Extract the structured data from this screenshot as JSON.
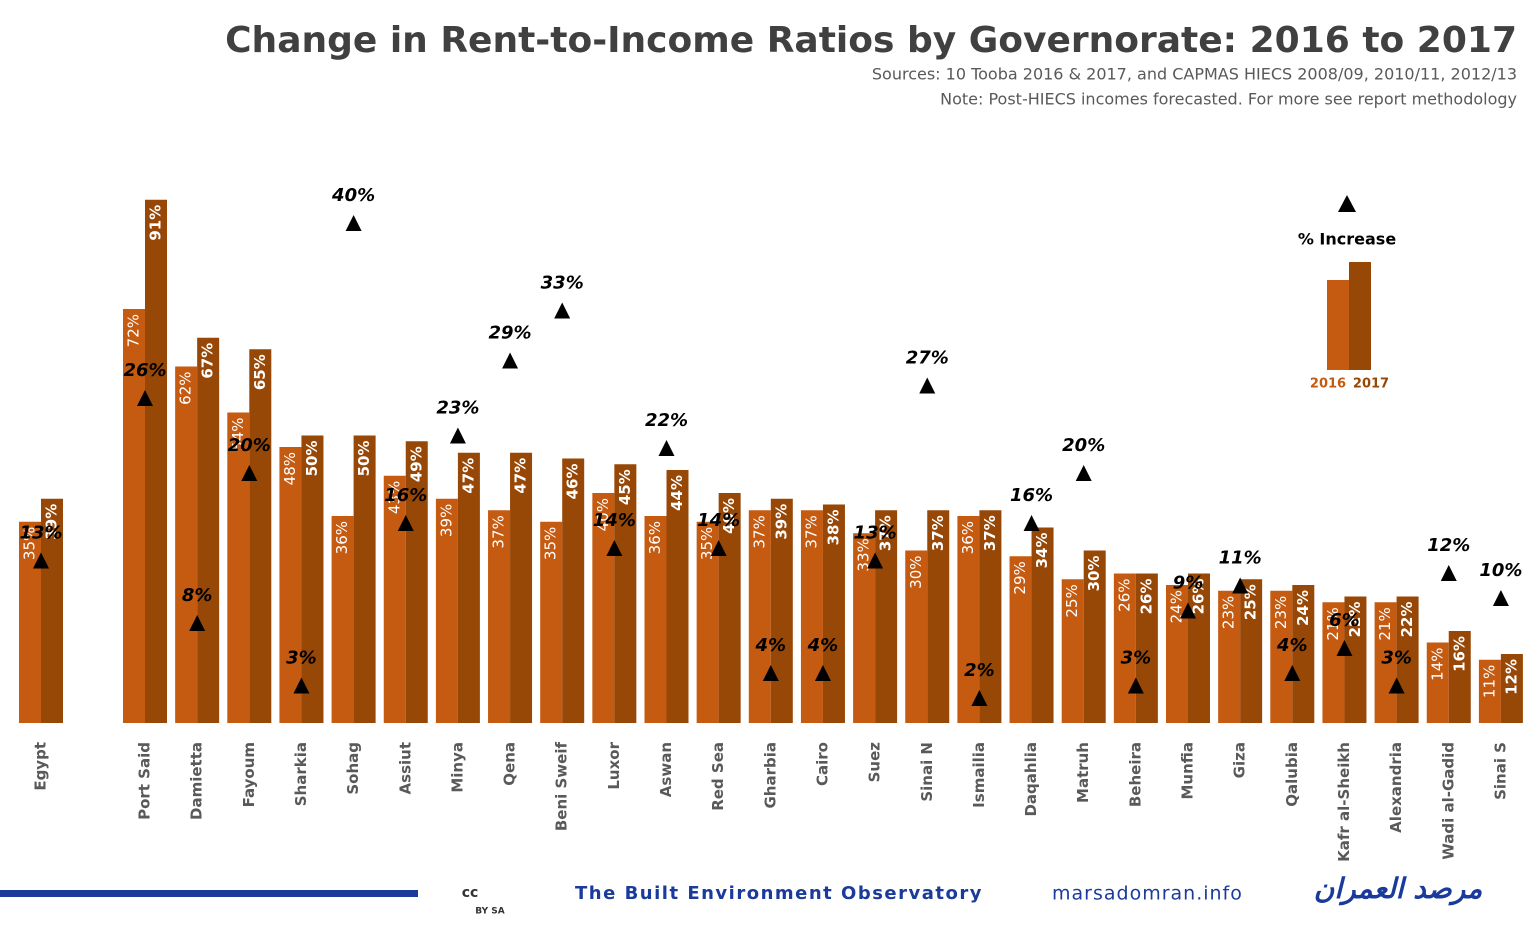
{
  "chart_data": {
    "type": "bar",
    "title": "Change in Rent-to-Income Ratios by Governorate: 2016 to 2017",
    "subtitle": "Sources: 10 Tooba 2016 & 2017, and CAPMAS HIECS 2008/09, 2010/11, 2012/13",
    "note": "Note: Post-HIECS incomes forecasted. For more see report methodology",
    "categories": [
      "Egypt",
      "Port Said",
      "Damietta",
      "Fayoum",
      "Sharkia",
      "Sohag",
      "Assiut",
      "Minya",
      "Qena",
      "Beni Sweif",
      "Luxor",
      "Aswan",
      "Red Sea",
      "Gharbia",
      "Cairo",
      "Suez",
      "Sinai N",
      "Ismailia",
      "Daqahlia",
      "Matruh",
      "Beheira",
      "Munfia",
      "Giza",
      "Qalubia",
      "Kafr al-Sheikh",
      "Alexandria",
      "Wadi al-Gadid",
      "Sinai S"
    ],
    "series": [
      {
        "name": "2016",
        "color": "#c55a11",
        "values": [
          35,
          72,
          62,
          54,
          48,
          36,
          43,
          39,
          37,
          35,
          40,
          36,
          35,
          37,
          37,
          33,
          30,
          36,
          29,
          25,
          26,
          24,
          23,
          23,
          21,
          21,
          14,
          11
        ],
        "value_labels": [
          "35%",
          "72%",
          "62%",
          "54%",
          "48%",
          "36%",
          "43%",
          "39%",
          "37%",
          "35%",
          "40%",
          "36%",
          "35%",
          "37%",
          "37%",
          "33%",
          "30%",
          "36%",
          "29%",
          "25%",
          "26%",
          "24%",
          "23%",
          "23%",
          "21%",
          "21%",
          "14%",
          "11%"
        ]
      },
      {
        "name": "2017",
        "color": "#974706",
        "values": [
          39,
          91,
          67,
          65,
          50,
          50,
          49,
          47,
          47,
          46,
          45,
          44,
          40,
          39,
          38,
          37,
          37,
          37,
          34,
          30,
          26,
          26,
          25,
          24,
          22,
          22,
          16,
          12
        ],
        "value_labels": [
          "39%",
          "91%",
          "67%",
          "65%",
          "50%",
          "50%",
          "49%",
          "47%",
          "47%",
          "46%",
          "45%",
          "44%",
          "40%",
          "39%",
          "38%",
          "37%",
          "37%",
          "37%",
          "34%",
          "30%",
          "26%",
          "26%",
          "25%",
          "24%",
          "22%",
          "22%",
          "16%",
          "12%"
        ]
      },
      {
        "name": "% Increase",
        "color": "#000000",
        "axis": "y2",
        "marker": "triangle",
        "values": [
          13,
          26,
          8,
          20,
          3,
          40,
          16,
          23,
          29,
          33,
          14,
          22,
          14,
          4,
          4,
          13,
          27,
          2,
          16,
          20,
          3,
          9,
          11,
          4,
          6,
          3,
          12,
          10
        ],
        "value_labels": [
          "13%",
          "26%",
          "8%",
          "20%",
          "3%",
          "40%",
          "16%",
          "23%",
          "29%",
          "33%",
          "14%",
          "22%",
          "14%",
          "4%",
          "4%",
          "13%",
          "27%",
          "2%",
          "16%",
          "20%",
          "3%",
          "9%",
          "11%",
          "4%",
          "6%",
          "3%",
          "12%",
          "10%"
        ]
      }
    ],
    "ylim": [
      0,
      100
    ],
    "y2lim": [
      0,
      46
    ],
    "legend": "upper right"
  },
  "footer": {
    "license_icon": "cc",
    "license": "BY SA",
    "organization": "The Built Environment Observatory",
    "website": "marsadomran.info",
    "arabic_name": "مرصد العمران"
  }
}
